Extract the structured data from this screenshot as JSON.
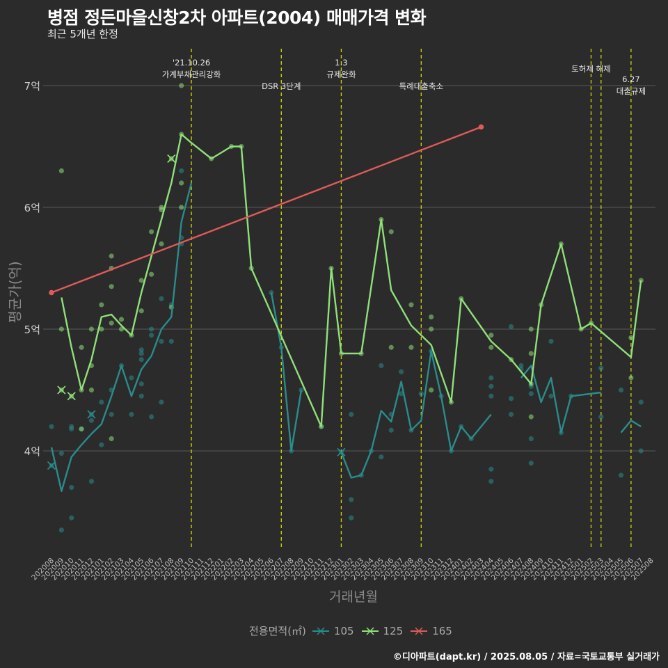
{
  "title": "병점 정든마을신창2차 아파트(2004) 매매가격 변화",
  "subtitle": "최근 5개년 한정",
  "footer": "©디아파트(dapt.kr) / 2025.08.05 / 자료=국토교통부 실거래가",
  "colors": {
    "background": "#2b2b2b",
    "grid": "#5a5a5a",
    "event_line": "#d8d800",
    "s105": "#2a8c8c",
    "s125": "#90e07a",
    "s165": "#e05a5a"
  },
  "chart_data": {
    "type": "line",
    "title": "병점 정든마을신창2차 아파트(2004) 매매가격 변화",
    "subtitle": "최근 5개년 한정",
    "xlabel": "거래년월",
    "ylabel": "평균가(억)",
    "categories": [
      "202008",
      "202009",
      "202010",
      "202011",
      "202012",
      "202101",
      "202102",
      "202103",
      "202104",
      "202105",
      "202106",
      "202107",
      "202108",
      "202109",
      "202110",
      "202111",
      "202112",
      "202201",
      "202202",
      "202203",
      "202204",
      "202205",
      "202206",
      "202207",
      "202208",
      "202209",
      "202210",
      "202211",
      "202212",
      "202301",
      "202302",
      "202303",
      "202304",
      "202305",
      "202306",
      "202307",
      "202308",
      "202309",
      "202310",
      "202311",
      "202312",
      "202401",
      "202402",
      "202403",
      "202404",
      "202405",
      "202406",
      "202407",
      "202408",
      "202409",
      "202410",
      "202411",
      "202412",
      "202501",
      "202502",
      "202503",
      "202504",
      "202505",
      "202506",
      "202507",
      "202508"
    ],
    "y_ticks": [
      {
        "value": 4,
        "label": "4억"
      },
      {
        "value": 5,
        "label": "5억"
      },
      {
        "value": 6,
        "label": "6억"
      },
      {
        "value": 7,
        "label": "7억"
      }
    ],
    "ylim": [
      3.2,
      7.25
    ],
    "legend": {
      "title": "전용면적(㎡)",
      "position": "bottom",
      "items": [
        "105",
        "125",
        "165"
      ]
    },
    "series": [
      {
        "name": "105",
        "color": "#2a8c8c",
        "segments": [
          [
            [
              "202008",
              4.03
            ],
            [
              "202009",
              3.67
            ],
            [
              "202010",
              3.95
            ],
            [
              "202011",
              4.05
            ],
            [
              "202012",
              4.14
            ],
            [
              "202101",
              4.22
            ],
            [
              "202102",
              4.45
            ],
            [
              "202103",
              4.7
            ],
            [
              "202104",
              4.45
            ],
            [
              "202105",
              4.67
            ],
            [
              "202106",
              4.78
            ],
            [
              "202107",
              5.0
            ],
            [
              "202108",
              5.1
            ],
            [
              "202109",
              5.88
            ],
            [
              "202110",
              6.2
            ]
          ],
          [
            [
              "202206",
              5.3
            ],
            [
              "202207",
              4.85
            ],
            [
              "202208",
              4.0
            ],
            [
              "202209",
              4.5
            ]
          ],
          [
            [
              "202211",
              4.2
            ]
          ],
          [
            [
              "202301",
              3.99
            ],
            [
              "202302",
              3.78
            ],
            [
              "202303",
              3.8
            ],
            [
              "202304",
              4.0
            ],
            [
              "202305",
              4.33
            ],
            [
              "202306",
              4.24
            ],
            [
              "202307",
              4.57
            ],
            [
              "202308",
              4.17
            ],
            [
              "202309",
              4.25
            ],
            [
              "202310",
              4.82
            ],
            [
              "202311",
              4.45
            ],
            [
              "202312",
              4.0
            ],
            [
              "202401",
              4.2
            ],
            [
              "202402",
              4.1
            ],
            [
              "202404",
              4.3
            ]
          ],
          [
            [
              "202407",
              4.6
            ],
            [
              "202408",
              4.7
            ],
            [
              "202409",
              4.4
            ],
            [
              "202410",
              4.6
            ],
            [
              "202411",
              4.15
            ],
            [
              "202412",
              4.45
            ],
            [
              "202503",
              4.48
            ]
          ],
          [
            [
              "202505",
              4.15
            ],
            [
              "202506",
              4.25
            ],
            [
              "202507",
              4.2
            ]
          ]
        ],
        "points": [
          [
            "202008",
            4.2
          ],
          [
            "202008",
            3.88
          ],
          [
            "202009",
            3.98
          ],
          [
            "202009",
            3.35
          ],
          [
            "202010",
            4.2
          ],
          [
            "202010",
            4.18
          ],
          [
            "202010",
            3.7
          ],
          [
            "202010",
            3.45
          ],
          [
            "202011",
            4.18
          ],
          [
            "202012",
            4.3
          ],
          [
            "202012",
            4.25
          ],
          [
            "202012",
            3.75
          ],
          [
            "202101",
            4.4
          ],
          [
            "202101",
            4.05
          ],
          [
            "202102",
            4.5
          ],
          [
            "202102",
            4.3
          ],
          [
            "202103",
            4.7
          ],
          [
            "202104",
            4.6
          ],
          [
            "202104",
            4.3
          ],
          [
            "202105",
            4.83
          ],
          [
            "202105",
            4.8
          ],
          [
            "202105",
            4.75
          ],
          [
            "202105",
            4.55
          ],
          [
            "202105",
            4.45
          ],
          [
            "202106",
            5.0
          ],
          [
            "202106",
            4.95
          ],
          [
            "202106",
            4.28
          ],
          [
            "202107",
            5.25
          ],
          [
            "202107",
            4.9
          ],
          [
            "202107",
            4.4
          ],
          [
            "202108",
            5.2
          ],
          [
            "202108",
            4.9
          ],
          [
            "202109",
            6.3
          ],
          [
            "202109",
            5.75
          ],
          [
            "202109",
            5.7
          ],
          [
            "202206",
            5.3
          ],
          [
            "202207",
            4.85
          ],
          [
            "202208",
            4.0
          ],
          [
            "202209",
            4.5
          ],
          [
            "202211",
            4.2
          ],
          [
            "202301",
            3.99
          ],
          [
            "202302",
            4.3
          ],
          [
            "202302",
            3.6
          ],
          [
            "202302",
            3.45
          ],
          [
            "202303",
            3.8
          ],
          [
            "202304",
            4.0
          ],
          [
            "202305",
            4.7
          ],
          [
            "202305",
            3.95
          ],
          [
            "202306",
            4.3
          ],
          [
            "202306",
            4.17
          ],
          [
            "202307",
            4.65
          ],
          [
            "202307",
            4.47
          ],
          [
            "202308",
            4.17
          ],
          [
            "202309",
            4.47
          ],
          [
            "202310",
            4.82
          ],
          [
            "202311",
            4.45
          ],
          [
            "202312",
            4.0
          ],
          [
            "202401",
            4.2
          ],
          [
            "202402",
            4.1
          ],
          [
            "202404",
            4.6
          ],
          [
            "202404",
            4.53
          ],
          [
            "202404",
            4.45
          ],
          [
            "202404",
            3.85
          ],
          [
            "202404",
            3.75
          ],
          [
            "202406",
            5.02
          ],
          [
            "202406",
            4.43
          ],
          [
            "202406",
            4.3
          ],
          [
            "202407",
            4.7
          ],
          [
            "202407",
            4.67
          ],
          [
            "202408",
            4.53
          ],
          [
            "202408",
            4.47
          ],
          [
            "202408",
            4.1
          ],
          [
            "202408",
            3.9
          ],
          [
            "202410",
            4.9
          ],
          [
            "202410",
            4.45
          ],
          [
            "202411",
            4.15
          ],
          [
            "202412",
            4.45
          ],
          [
            "202503",
            4.68
          ],
          [
            "202503",
            4.28
          ],
          [
            "202505",
            4.5
          ],
          [
            "202505",
            3.8
          ],
          [
            "202507",
            4.4
          ],
          [
            "202507",
            4.0
          ]
        ],
        "markers_x": [
          [
            "202008",
            3.88
          ],
          [
            "202012",
            4.3
          ],
          [
            "202301",
            3.99
          ]
        ]
      },
      {
        "name": "125",
        "color": "#90e07a",
        "segments": [
          [
            [
              "202009",
              5.26
            ],
            [
              "202010",
              4.85
            ],
            [
              "202011",
              4.5
            ],
            [
              "202012",
              4.75
            ],
            [
              "202101",
              5.1
            ],
            [
              "202102",
              5.12
            ],
            [
              "202103",
              5.03
            ],
            [
              "202104",
              4.95
            ],
            [
              "202105",
              5.3
            ],
            [
              "202106",
              5.6
            ],
            [
              "202107",
              5.9
            ],
            [
              "202108",
              6.2
            ],
            [
              "202109",
              6.6
            ],
            [
              "202110",
              6.53
            ],
            [
              "202112",
              6.4
            ],
            [
              "202202",
              6.5
            ],
            [
              "202203",
              6.5
            ],
            [
              "202204",
              5.5
            ],
            [
              "202211",
              4.2
            ],
            [
              "202212",
              5.5
            ],
            [
              "202301",
              4.8
            ],
            [
              "202303",
              4.8
            ],
            [
              "202305",
              5.9
            ],
            [
              "202306",
              5.32
            ],
            [
              "202308",
              5.03
            ],
            [
              "202310",
              4.87
            ],
            [
              "202312",
              4.4
            ],
            [
              "202401",
              5.25
            ],
            [
              "202404",
              4.9
            ],
            [
              "202406",
              4.75
            ],
            [
              "202408",
              4.55
            ],
            [
              "202409",
              5.2
            ],
            [
              "202411",
              5.7
            ],
            [
              "202501",
              5.0
            ],
            [
              "202502",
              5.05
            ],
            [
              "202506",
              4.77
            ],
            [
              "202507",
              5.4
            ]
          ]
        ],
        "points": [
          [
            "202009",
            6.3
          ],
          [
            "202009",
            5.0
          ],
          [
            "202009",
            4.5
          ],
          [
            "202010",
            4.45
          ],
          [
            "202011",
            4.85
          ],
          [
            "202011",
            4.5
          ],
          [
            "202011",
            4.18
          ],
          [
            "202012",
            5.0
          ],
          [
            "202012",
            4.7
          ],
          [
            "202012",
            4.5
          ],
          [
            "202101",
            5.2
          ],
          [
            "202101",
            5.0
          ],
          [
            "202102",
            5.6
          ],
          [
            "202102",
            5.5
          ],
          [
            "202102",
            5.35
          ],
          [
            "202102",
            5.05
          ],
          [
            "202102",
            4.1
          ],
          [
            "202103",
            5.08
          ],
          [
            "202103",
            5.0
          ],
          [
            "202104",
            4.95
          ],
          [
            "202105",
            5.4
          ],
          [
            "202105",
            5.15
          ],
          [
            "202106",
            5.8
          ],
          [
            "202106",
            5.45
          ],
          [
            "202107",
            6.0
          ],
          [
            "202107",
            5.98
          ],
          [
            "202107",
            5.7
          ],
          [
            "202108",
            6.4
          ],
          [
            "202108",
            5.18
          ],
          [
            "202109",
            7.0
          ],
          [
            "202109",
            6.6
          ],
          [
            "202109",
            6.2
          ],
          [
            "202109",
            6.0
          ],
          [
            "202112",
            6.4
          ],
          [
            "202202",
            6.5
          ],
          [
            "202203",
            6.5
          ],
          [
            "202204",
            5.5
          ],
          [
            "202211",
            4.2
          ],
          [
            "202212",
            5.5
          ],
          [
            "202301",
            4.8
          ],
          [
            "202303",
            4.8
          ],
          [
            "202305",
            5.9
          ],
          [
            "202306",
            5.8
          ],
          [
            "202306",
            4.85
          ],
          [
            "202308",
            5.2
          ],
          [
            "202308",
            4.85
          ],
          [
            "202310",
            5.1
          ],
          [
            "202310",
            5.0
          ],
          [
            "202310",
            4.5
          ],
          [
            "202312",
            4.4
          ],
          [
            "202401",
            5.25
          ],
          [
            "202404",
            4.95
          ],
          [
            "202404",
            4.85
          ],
          [
            "202406",
            4.75
          ],
          [
            "202408",
            5.0
          ],
          [
            "202408",
            4.8
          ],
          [
            "202408",
            4.55
          ],
          [
            "202408",
            4.28
          ],
          [
            "202409",
            5.2
          ],
          [
            "202411",
            5.7
          ],
          [
            "202501",
            5.0
          ],
          [
            "202502",
            5.05
          ],
          [
            "202506",
            4.93
          ],
          [
            "202506",
            4.6
          ],
          [
            "202507",
            5.4
          ]
        ],
        "markers_x": [
          [
            "202009",
            4.5
          ],
          [
            "202010",
            4.45
          ],
          [
            "202108",
            6.4
          ]
        ]
      },
      {
        "name": "165",
        "color": "#e05a5a",
        "segments": [
          [
            [
              "202008",
              5.3
            ],
            [
              "202403",
              6.66
            ]
          ]
        ],
        "points": [
          [
            "202008",
            5.3
          ],
          [
            "202403",
            6.66
          ]
        ],
        "markers_x": []
      }
    ],
    "events": [
      {
        "x": "202110",
        "label_lines": [
          "'21.10.26",
          "가계부채관리강화"
        ],
        "label_pos": "upper"
      },
      {
        "x": "202207",
        "label_lines": [
          "DSR 3단계"
        ],
        "label_pos": "lower"
      },
      {
        "x": "202301",
        "label_lines": [
          "1.3",
          "규제완화"
        ],
        "label_pos": "upper"
      },
      {
        "x": "202309",
        "label_lines": [
          "특례대출축소"
        ],
        "label_pos": "lower"
      },
      {
        "x": "202502",
        "label_lines": [
          "토허제 해제"
        ],
        "label_pos": "mid"
      },
      {
        "x": "202503",
        "label_lines": [],
        "label_pos": "none"
      },
      {
        "x": "202506",
        "label_lines": [
          "6.27",
          "대출규제"
        ],
        "label_pos": "upper2"
      }
    ]
  }
}
